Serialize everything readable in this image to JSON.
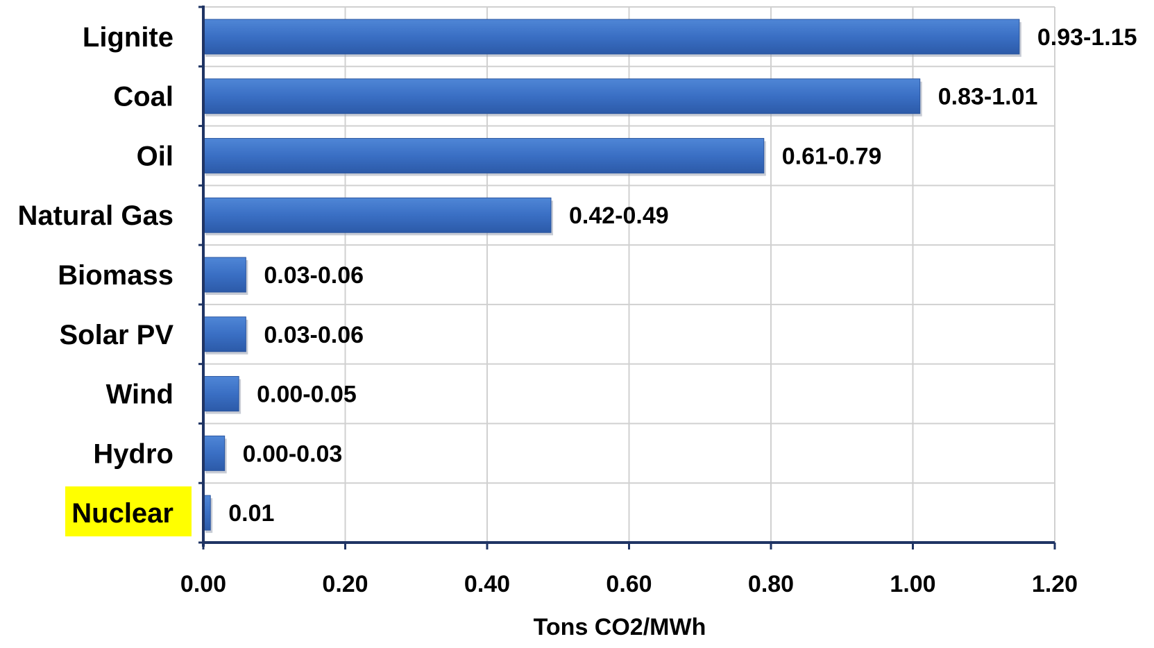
{
  "colors": {
    "bar_fill": "#3a6fc4",
    "bar_edge": "#2a559f",
    "grid": "#d0d0d0",
    "axis": "#1f3464",
    "highlight": "#ffff00"
  },
  "chart_data": {
    "type": "bar",
    "orientation": "horizontal",
    "categories": [
      "Lignite",
      "Coal",
      "Oil",
      "Natural Gas",
      "Biomass",
      "Solar PV",
      "Wind",
      "Hydro",
      "Nuclear"
    ],
    "values": [
      1.15,
      1.01,
      0.79,
      0.49,
      0.06,
      0.06,
      0.05,
      0.03,
      0.01
    ],
    "data_labels": [
      "0.93-1.15",
      "0.83-1.01",
      "0.61-0.79",
      "0.42-0.49",
      "0.03-0.06",
      "0.03-0.06",
      "0.00-0.05",
      "0.00-0.03",
      "0.01"
    ],
    "xlabel": "Tons CO2/MWh",
    "ylabel": "",
    "xlim": [
      0,
      1.2
    ],
    "xticks": [
      "0.00",
      "0.20",
      "0.40",
      "0.60",
      "0.80",
      "1.00",
      "1.20"
    ],
    "grid": true,
    "highlighted_category": "Nuclear"
  }
}
